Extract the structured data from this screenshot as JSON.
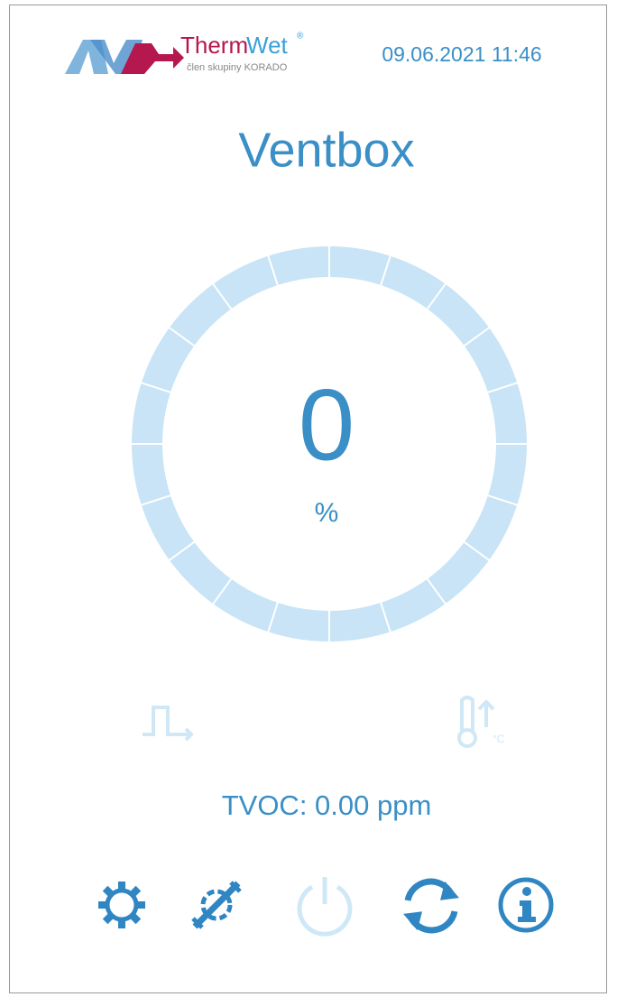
{
  "header": {
    "brand_primary": "Therm",
    "brand_secondary": "Wet",
    "brand_mark": "®",
    "brand_tagline": "člen skupiny KORADO",
    "datetime": "09.06.2021 11:46"
  },
  "title": "Ventbox",
  "gauge": {
    "value": 0,
    "unit": "%"
  },
  "status_icons": {
    "temperature_unit": "°C"
  },
  "sensor": "TVOC: 0.00 ppm"
}
